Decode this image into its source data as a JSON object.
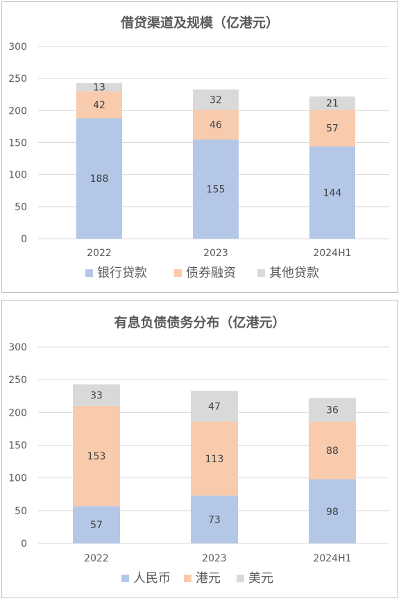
{
  "chart_data": [
    {
      "type": "bar",
      "stacked": true,
      "title": "借贷渠道及规模（亿港元）",
      "categories": [
        "2022",
        "2023",
        "2024H1"
      ],
      "ylim": [
        0,
        300
      ],
      "yticks": [
        0,
        50,
        100,
        150,
        200,
        250,
        300
      ],
      "grid": true,
      "legend_position": "bottom",
      "series": [
        {
          "name": "银行贷款",
          "color": "#b4c7e7",
          "values": [
            188,
            155,
            144
          ]
        },
        {
          "name": "债券融资",
          "color": "#f8cbad",
          "values": [
            42,
            46,
            57
          ]
        },
        {
          "name": "其他贷款",
          "color": "#d9d9d9",
          "values": [
            13,
            32,
            21
          ]
        }
      ]
    },
    {
      "type": "bar",
      "stacked": true,
      "title": "有息负债债务分布（亿港元）",
      "categories": [
        "2022",
        "2023",
        "2024H1"
      ],
      "ylim": [
        0,
        300
      ],
      "yticks": [
        0,
        50,
        100,
        150,
        200,
        250,
        300
      ],
      "grid": true,
      "legend_position": "bottom",
      "series": [
        {
          "name": "人民币",
          "color": "#b4c7e7",
          "values": [
            57,
            73,
            98
          ]
        },
        {
          "name": "港元",
          "color": "#f8cbad",
          "values": [
            153,
            113,
            88
          ]
        },
        {
          "name": "美元",
          "color": "#d9d9d9",
          "values": [
            33,
            47,
            36
          ]
        }
      ]
    }
  ]
}
